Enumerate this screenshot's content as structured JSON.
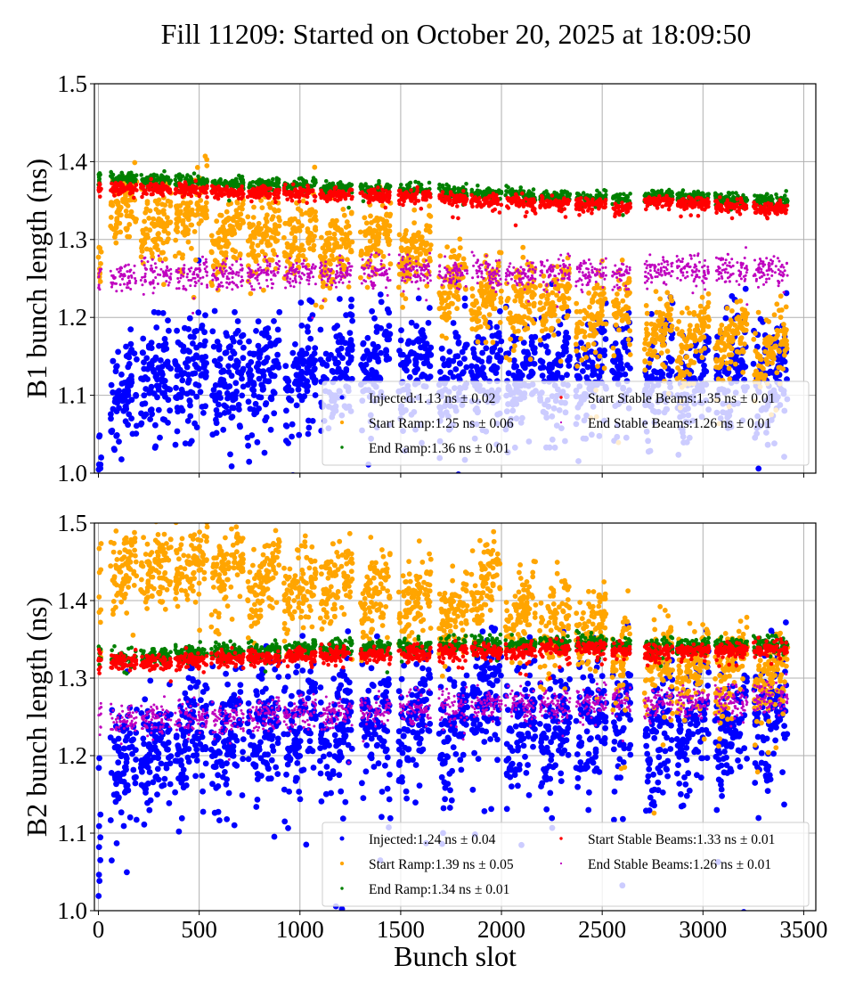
{
  "title": "Fill 11209: Started on October 20, 2025 at 18:09:50",
  "chart_data": [
    {
      "type": "scatter",
      "panel": "top",
      "title": "Fill 11209: Started on October 20, 2025 at 18:09:50",
      "xlabel": "",
      "ylabel": "B1 bunch length (ns)",
      "xlim": [
        -20,
        3560
      ],
      "ylim": [
        1.0,
        1.5
      ],
      "xticks": [
        0,
        500,
        1000,
        1500,
        2000,
        2500,
        3000,
        3500
      ],
      "xtick_labels_visible": false,
      "yticks": [
        1.0,
        1.1,
        1.2,
        1.3,
        1.4,
        1.5
      ],
      "ytick_labels": [
        "1.0",
        "1.1",
        "1.2",
        "1.3",
        "1.4",
        "1.5"
      ],
      "grid": true,
      "legend_position": "lower-right",
      "trains": [
        {
          "start": 60,
          "end": 190
        },
        {
          "start": 210,
          "end": 360
        },
        {
          "start": 380,
          "end": 540
        },
        {
          "start": 560,
          "end": 720
        },
        {
          "start": 740,
          "end": 900
        },
        {
          "start": 920,
          "end": 1080
        },
        {
          "start": 1100,
          "end": 1260
        },
        {
          "start": 1300,
          "end": 1450
        },
        {
          "start": 1490,
          "end": 1650
        },
        {
          "start": 1690,
          "end": 1830
        },
        {
          "start": 1850,
          "end": 2000
        },
        {
          "start": 2020,
          "end": 2170
        },
        {
          "start": 2190,
          "end": 2340
        },
        {
          "start": 2370,
          "end": 2520
        },
        {
          "start": 2550,
          "end": 2640
        },
        {
          "start": 2710,
          "end": 2850
        },
        {
          "start": 2870,
          "end": 3030
        },
        {
          "start": 3060,
          "end": 3220
        },
        {
          "start": 3250,
          "end": 3420
        }
      ],
      "series": [
        {
          "name": "Injected",
          "label": "Injected:1.13 ns ± 0.02",
          "color": "#0000ff",
          "marker": "large",
          "mean": 1.13,
          "std": 0.02,
          "train_centers": [
            1.11,
            1.12,
            1.13,
            1.12,
            1.13,
            1.12,
            1.13,
            1.14,
            1.14,
            1.12,
            1.13,
            1.12,
            1.13,
            1.13,
            1.13,
            1.12,
            1.12,
            1.13,
            1.12
          ],
          "spread": 0.035
        },
        {
          "name": "Start Ramp",
          "label": "Start Ramp:1.25 ns ± 0.06",
          "color": "#ffa500",
          "marker": "medium",
          "mean": 1.25,
          "std": 0.06,
          "train_centers": [
            1.34,
            1.32,
            1.33,
            1.31,
            1.31,
            1.3,
            1.29,
            1.3,
            1.29,
            1.24,
            1.23,
            1.22,
            1.22,
            1.2,
            1.21,
            1.18,
            1.17,
            1.17,
            1.16
          ],
          "spread": 0.022
        },
        {
          "name": "End Ramp",
          "label": "End Ramp:1.36 ns ± 0.01",
          "color": "#008000",
          "marker": "small",
          "mean": 1.36,
          "std": 0.01,
          "train_centers": [
            1.378,
            1.376,
            1.374,
            1.372,
            1.37,
            1.369,
            1.367,
            1.365,
            1.363,
            1.361,
            1.359,
            1.357,
            1.355,
            1.353,
            1.351,
            1.357,
            1.355,
            1.352,
            1.349
          ],
          "spread": 0.004
        },
        {
          "name": "Start Stable Beams",
          "label": "Start Stable Beams:1.35 ns ± 0.01",
          "color": "#ff0000",
          "marker": "small",
          "mean": 1.35,
          "std": 0.01,
          "train_centers": [
            1.366,
            1.365,
            1.364,
            1.362,
            1.36,
            1.36,
            1.358,
            1.357,
            1.355,
            1.352,
            1.35,
            1.348,
            1.346,
            1.344,
            1.341,
            1.349,
            1.346,
            1.343,
            1.339
          ],
          "spread": 0.004
        },
        {
          "name": "End Stable Beams",
          "label": "End Stable Beams:1.26 ns ± 0.01",
          "color": "#bf00bf",
          "marker": "tiny",
          "mean": 1.26,
          "std": 0.01,
          "train_centers": [
            1.253,
            1.255,
            1.255,
            1.255,
            1.256,
            1.258,
            1.257,
            1.258,
            1.259,
            1.255,
            1.257,
            1.257,
            1.258,
            1.258,
            1.255,
            1.262,
            1.262,
            1.26,
            1.26
          ],
          "spread": 0.009
        }
      ]
    },
    {
      "type": "scatter",
      "panel": "bottom",
      "xlabel": "Bunch slot",
      "ylabel": "B2 bunch length (ns)",
      "xlim": [
        -20,
        3560
      ],
      "ylim": [
        1.0,
        1.5
      ],
      "xticks": [
        0,
        500,
        1000,
        1500,
        2000,
        2500,
        3000,
        3500
      ],
      "xtick_labels": [
        "0",
        "500",
        "1000",
        "1500",
        "2000",
        "2500",
        "3000",
        "3500"
      ],
      "yticks": [
        1.0,
        1.1,
        1.2,
        1.3,
        1.4,
        1.5
      ],
      "ytick_labels": [
        "1.0",
        "1.1",
        "1.2",
        "1.3",
        "1.4",
        "1.5"
      ],
      "grid": true,
      "legend_position": "lower-right",
      "trains": [
        {
          "start": 60,
          "end": 190
        },
        {
          "start": 210,
          "end": 360
        },
        {
          "start": 380,
          "end": 540
        },
        {
          "start": 560,
          "end": 720
        },
        {
          "start": 740,
          "end": 900
        },
        {
          "start": 920,
          "end": 1080
        },
        {
          "start": 1100,
          "end": 1260
        },
        {
          "start": 1300,
          "end": 1450
        },
        {
          "start": 1490,
          "end": 1650
        },
        {
          "start": 1690,
          "end": 1830
        },
        {
          "start": 1850,
          "end": 2000
        },
        {
          "start": 2020,
          "end": 2170
        },
        {
          "start": 2190,
          "end": 2340
        },
        {
          "start": 2370,
          "end": 2520
        },
        {
          "start": 2550,
          "end": 2640
        },
        {
          "start": 2710,
          "end": 2850
        },
        {
          "start": 2870,
          "end": 3030
        },
        {
          "start": 3060,
          "end": 3220
        },
        {
          "start": 3250,
          "end": 3420
        }
      ],
      "series": [
        {
          "name": "Injected",
          "label": "Injected:1.24 ns ± 0.04",
          "color": "#0000ff",
          "marker": "large",
          "mean": 1.24,
          "std": 0.04,
          "train_centers": [
            1.19,
            1.21,
            1.23,
            1.23,
            1.24,
            1.23,
            1.24,
            1.24,
            1.24,
            1.23,
            1.28,
            1.24,
            1.23,
            1.24,
            1.25,
            1.23,
            1.24,
            1.24,
            1.25
          ],
          "spread": 0.04
        },
        {
          "name": "Start Ramp",
          "label": "Start Ramp:1.39 ns ± 0.05",
          "color": "#ffa500",
          "marker": "medium",
          "mean": 1.39,
          "std": 0.05,
          "train_centers": [
            1.44,
            1.44,
            1.45,
            1.44,
            1.43,
            1.42,
            1.42,
            1.41,
            1.4,
            1.39,
            1.42,
            1.39,
            1.37,
            1.36,
            1.33,
            1.32,
            1.31,
            1.31,
            1.3
          ],
          "spread": 0.025
        },
        {
          "name": "End Ramp",
          "label": "End Ramp:1.34 ns ± 0.01",
          "color": "#008000",
          "marker": "small",
          "mean": 1.34,
          "std": 0.01,
          "train_centers": [
            1.327,
            1.328,
            1.332,
            1.334,
            1.336,
            1.338,
            1.339,
            1.34,
            1.341,
            1.342,
            1.343,
            1.343,
            1.345,
            1.346,
            1.343,
            1.34,
            1.342,
            1.343,
            1.345
          ],
          "spread": 0.005
        },
        {
          "name": "Start Stable Beams",
          "label": "Start Stable Beams:1.33 ns ± 0.01",
          "color": "#ff0000",
          "marker": "small",
          "mean": 1.33,
          "std": 0.01,
          "train_centers": [
            1.32,
            1.32,
            1.323,
            1.325,
            1.327,
            1.329,
            1.33,
            1.331,
            1.332,
            1.333,
            1.334,
            1.335,
            1.337,
            1.339,
            1.335,
            1.332,
            1.335,
            1.336,
            1.338
          ],
          "spread": 0.005
        },
        {
          "name": "End Stable Beams",
          "label": "End Stable Beams:1.26 ns ± 0.01",
          "color": "#bf00bf",
          "marker": "tiny",
          "mean": 1.26,
          "std": 0.01,
          "train_centers": [
            1.245,
            1.247,
            1.248,
            1.25,
            1.253,
            1.254,
            1.256,
            1.258,
            1.26,
            1.262,
            1.265,
            1.265,
            1.266,
            1.268,
            1.268,
            1.27,
            1.27,
            1.272,
            1.272
          ],
          "spread": 0.01
        }
      ]
    }
  ]
}
